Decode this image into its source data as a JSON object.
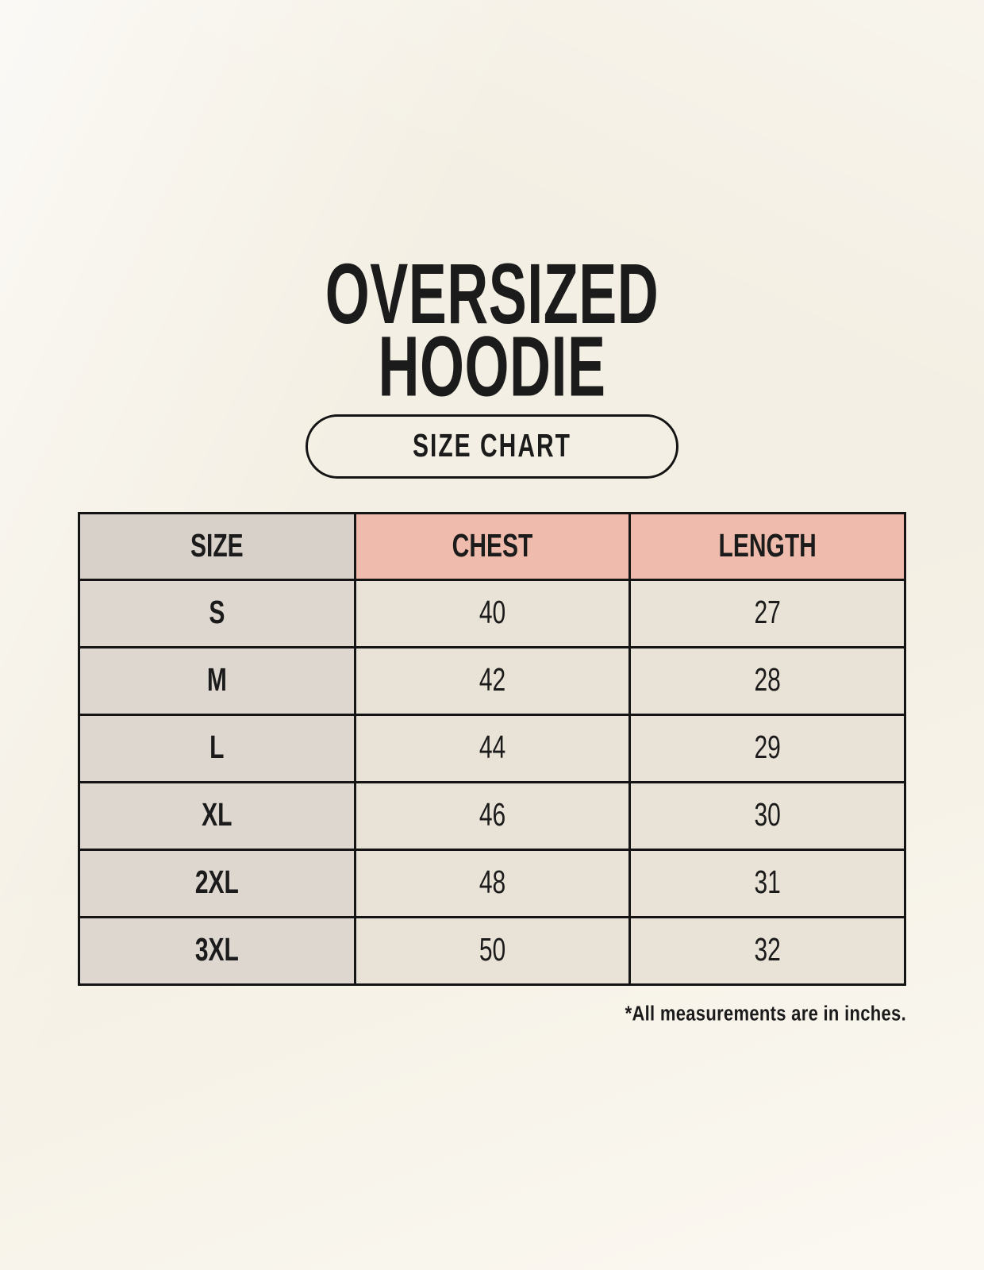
{
  "header": {
    "title_line1": "OVERSIZED",
    "title_line2": "HOODIE",
    "button_label": "SIZE CHART"
  },
  "size_chart": {
    "columns": [
      "SIZE",
      "CHEST",
      "LENGTH"
    ],
    "rows": [
      {
        "size": "S",
        "chest": "40",
        "length": "27"
      },
      {
        "size": "M",
        "chest": "42",
        "length": "28"
      },
      {
        "size": "L",
        "chest": "44",
        "length": "29"
      },
      {
        "size": "XL",
        "chest": "46",
        "length": "30"
      },
      {
        "size": "2XL",
        "chest": "48",
        "length": "31"
      },
      {
        "size": "3XL",
        "chest": "50",
        "length": "32"
      }
    ],
    "footnote": "*All measurements are in inches.",
    "units": "inches"
  },
  "colors": {
    "background": "#f9f5eb",
    "header_size_bg": "#d8d1ca",
    "header_measure_bg": "#eebbac",
    "row_size_bg": "#ded7d0",
    "row_value_bg": "#e9e2d6",
    "border": "#141414",
    "text": "#1b1b1b"
  }
}
